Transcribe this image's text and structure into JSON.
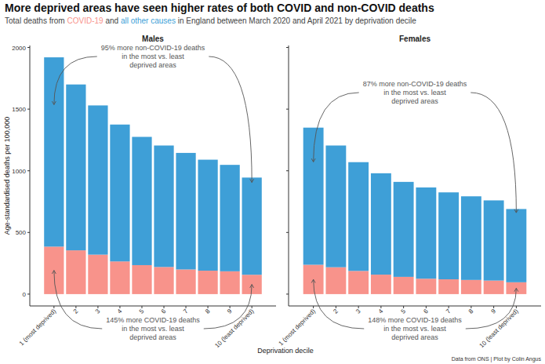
{
  "chart_data": {
    "type": "bar",
    "stacked": true,
    "grid": false,
    "title": "More deprived areas have seen higher rates of both COVID and non-COVID deaths",
    "subtitle": [
      "Total deaths from",
      "and",
      "in England between March 2020 and April 2021 by deprivation decile"
    ],
    "x_label": "Deprivation decile",
    "y_label": "Age-standardised deaths per 100,000",
    "source": "Data from ONS | Plot by Colin Angus",
    "facets": [
      "Males",
      "Females"
    ],
    "categories": [
      "1 (most deprived)",
      "2",
      "3",
      "4",
      "5",
      "6",
      "7",
      "8",
      "9",
      "10 (least deprived)"
    ],
    "ylim": [
      -96,
      2016
    ],
    "yticks": [
      0,
      500,
      1000,
      1500,
      2000
    ],
    "series": [
      {
        "name": "COVID-19",
        "color": "#F8938B",
        "values": [
          [
            385,
            355,
            320,
            265,
            235,
            220,
            200,
            190,
            185,
            157
          ],
          [
            238,
            218,
            188,
            158,
            140,
            125,
            120,
            115,
            110,
            96
          ]
        ],
        "annotations": [
          [
            "145% more COVID-19 deaths",
            "in the most vs. least",
            "deprived areas"
          ],
          [
            "148% more COVID-19 deaths",
            "in the most vs. least",
            "deprived areas"
          ]
        ]
      },
      {
        "name": "all other causes",
        "color": "#3E9FD7",
        "values": [
          [
            1535,
            1345,
            1210,
            1110,
            1040,
            985,
            945,
            900,
            863,
            788
          ],
          [
            1112,
            987,
            882,
            822,
            770,
            740,
            705,
            678,
            650,
            594
          ]
        ],
        "annotations": [
          [
            "95% more non-COVID-19 deaths",
            "in the most vs. least",
            "deprived areas"
          ],
          [
            "87% more non-COVID-19 deaths",
            "in the most vs. least",
            "deprived areas"
          ]
        ]
      }
    ]
  }
}
